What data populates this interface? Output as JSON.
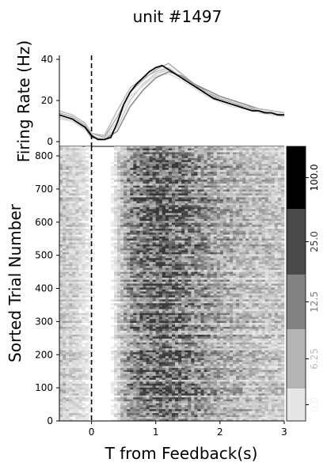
{
  "figure": {
    "title": "unit #1497"
  },
  "chart_data": [
    {
      "type": "line",
      "panel": "firing-rate",
      "title": "unit #1497",
      "ylabel": "Firing Rate (Hz)",
      "xlim": [
        -0.5,
        3.25
      ],
      "ylim": [
        0,
        42
      ],
      "yticks": [
        0,
        20,
        40
      ],
      "event_line_x": 0,
      "grid": false,
      "mean_series": {
        "x": [
          -0.5,
          -0.4,
          -0.3,
          -0.2,
          -0.1,
          0.0,
          0.1,
          0.2,
          0.3,
          0.4,
          0.5,
          0.6,
          0.7,
          0.8,
          0.9,
          1.0,
          1.1,
          1.2,
          1.3,
          1.4,
          1.5,
          1.6,
          1.7,
          1.8,
          1.9,
          2.0,
          2.1,
          2.2,
          2.3,
          2.4,
          2.5,
          2.6,
          2.7,
          2.8,
          2.9,
          3.0
        ],
        "y": [
          13,
          12,
          11,
          9,
          7,
          3,
          1,
          1,
          2,
          9,
          18,
          24,
          28,
          31,
          34,
          36,
          37,
          35,
          33,
          31,
          29,
          27,
          25,
          23,
          21,
          20,
          19,
          18,
          17,
          16,
          15,
          15,
          14,
          14,
          13,
          13
        ]
      },
      "trial_group_series": [
        {
          "x": [
            -0.5,
            -0.3,
            -0.1,
            0.0,
            0.2,
            0.4,
            0.6,
            0.8,
            1.0,
            1.2,
            1.4,
            1.6,
            1.8,
            2.0,
            2.2,
            2.4,
            2.6,
            2.8,
            3.0
          ],
          "y": [
            12,
            10,
            6,
            2,
            1,
            7,
            20,
            28,
            33,
            35,
            31,
            27,
            23,
            20,
            18,
            16,
            15,
            14,
            13
          ]
        },
        {
          "x": [
            -0.5,
            -0.3,
            -0.1,
            0.0,
            0.2,
            0.4,
            0.6,
            0.8,
            1.0,
            1.2,
            1.4,
            1.6,
            1.8,
            2.0,
            2.2,
            2.4,
            2.6,
            2.8,
            3.0
          ],
          "y": [
            14,
            12,
            8,
            4,
            2,
            12,
            24,
            30,
            35,
            38,
            33,
            28,
            24,
            21,
            19,
            17,
            15,
            14,
            12
          ]
        },
        {
          "x": [
            -0.5,
            -0.3,
            -0.1,
            0.0,
            0.2,
            0.4,
            0.6,
            0.8,
            1.0,
            1.2,
            1.4,
            1.6,
            1.8,
            2.0,
            2.2,
            2.4,
            2.6,
            2.8,
            3.0
          ],
          "y": [
            11,
            10,
            7,
            3,
            1,
            10,
            22,
            27,
            32,
            33,
            30,
            26,
            22,
            19,
            17,
            16,
            14,
            13,
            12
          ]
        },
        {
          "x": [
            -0.5,
            -0.3,
            -0.1,
            0.0,
            0.2,
            0.4,
            0.6,
            0.8,
            1.0,
            1.2,
            1.4,
            1.6,
            1.8,
            2.0,
            2.2,
            2.4,
            2.6,
            2.8,
            3.0
          ],
          "y": [
            13,
            11,
            7,
            2,
            1,
            5,
            17,
            25,
            31,
            34,
            32,
            28,
            25,
            22,
            20,
            18,
            16,
            15,
            14
          ]
        },
        {
          "x": [
            -0.5,
            -0.3,
            -0.1,
            0.0,
            0.2,
            0.4,
            0.6,
            0.8,
            1.0,
            1.2,
            1.4,
            1.6,
            1.8,
            2.0,
            2.2,
            2.4,
            2.6,
            2.8,
            3.0
          ],
          "y": [
            15,
            13,
            9,
            4,
            3,
            15,
            26,
            31,
            34,
            36,
            31,
            27,
            24,
            20,
            18,
            17,
            16,
            15,
            14
          ]
        }
      ]
    },
    {
      "type": "heatmap",
      "panel": "raster",
      "xlabel": "T from Feedback(s)",
      "ylabel": "Sorted Trial Number",
      "xlim": [
        -0.5,
        3.0
      ],
      "ylim": [
        0,
        830
      ],
      "xticks": [
        0,
        1,
        2,
        3
      ],
      "yticks": [
        0,
        100,
        200,
        300,
        400,
        500,
        600,
        700,
        800
      ],
      "event_line_x": 0,
      "n_trials": 830,
      "colorbar": {
        "levels": [
          {
            "label": "0.0",
            "color": "#e6e6e6",
            "label_color": "#f2f2f2"
          },
          {
            "label": "6.25",
            "color": "#b4b4b4",
            "label_color": "#bdbdbd"
          },
          {
            "label": "12.5",
            "color": "#828282",
            "label_color": "#7a7a7a"
          },
          {
            "label": "25.0",
            "color": "#4a4a4a",
            "label_color": "#3a3a3a"
          },
          {
            "label": "100.0",
            "color": "#000000",
            "label_color": "#000000"
          }
        ]
      }
    }
  ]
}
